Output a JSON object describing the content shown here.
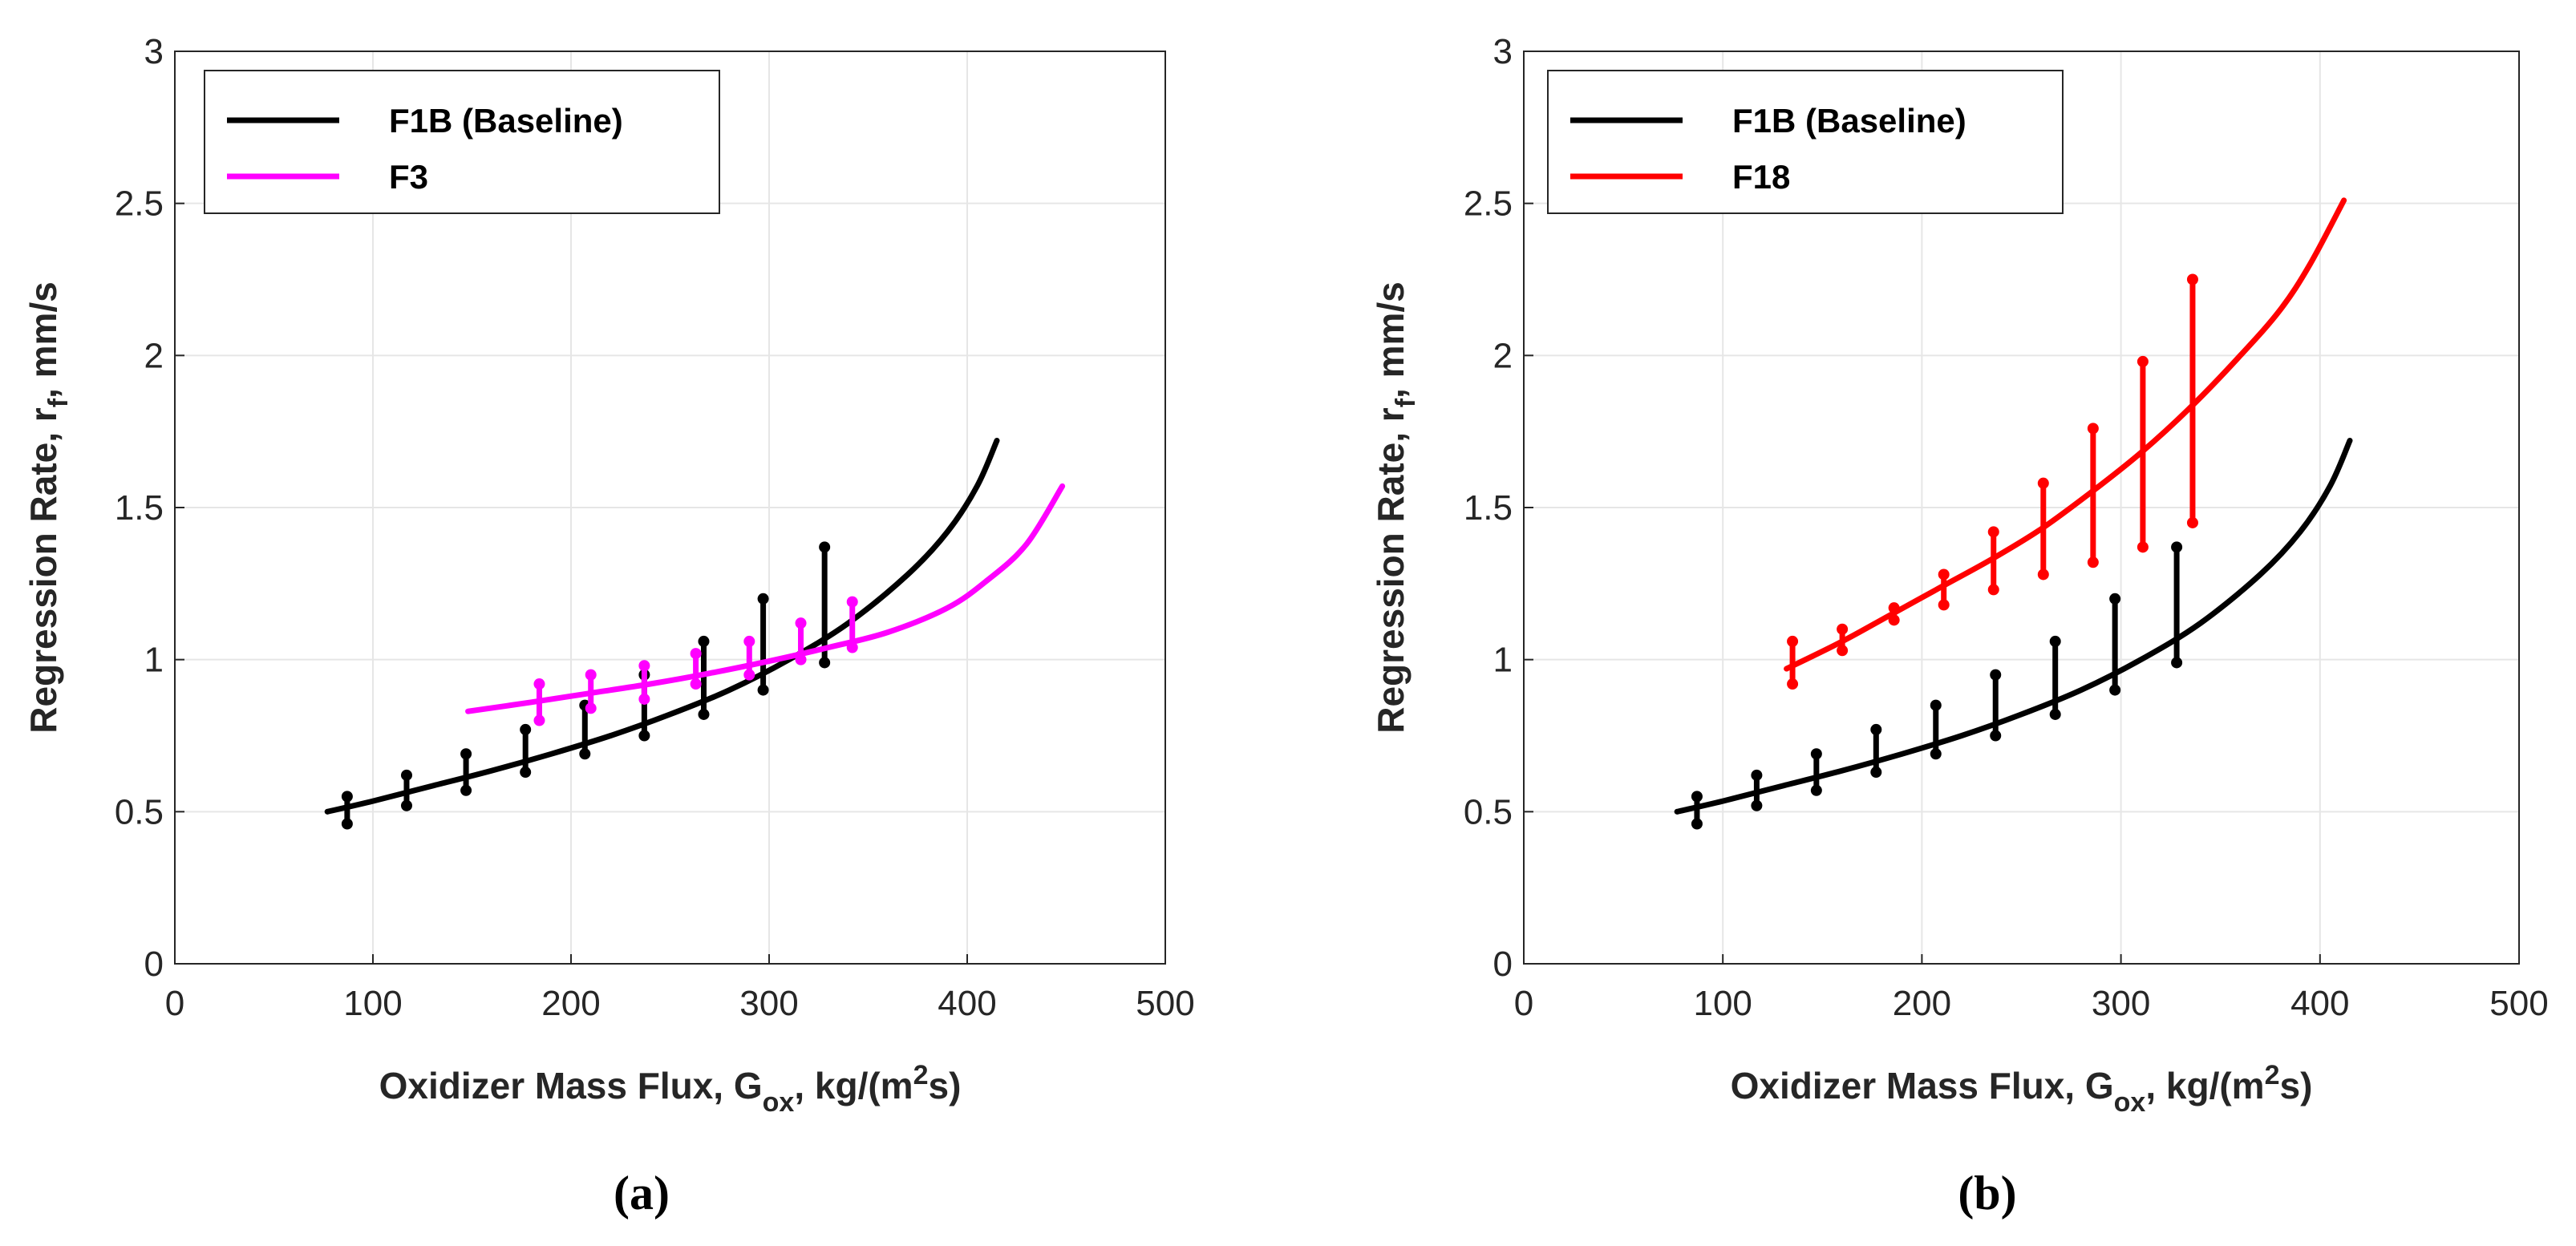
{
  "chart_data": [
    {
      "type": "line",
      "panel_label": "(a)",
      "xlabel": {
        "main": "Oxidizer Mass Flux, G",
        "sub": "ox",
        "mid": ", kg/(m",
        "sup": "2",
        "end": "s)"
      },
      "ylabel": {
        "main": "Regression Rate, r",
        "sub": "f",
        "end": ", mm/s"
      },
      "xlim": [
        0,
        500
      ],
      "ylim": [
        0,
        3
      ],
      "xticks": [
        0,
        100,
        200,
        300,
        400,
        500
      ],
      "yticks": [
        0,
        0.5,
        1,
        1.5,
        2,
        2.5,
        3
      ],
      "xtick_labels": [
        "0",
        "100",
        "200",
        "300",
        "400",
        "500"
      ],
      "ytick_labels": [
        "0",
        "0.5",
        "1",
        "1.5",
        "2",
        "2.5",
        "3"
      ],
      "grid": true,
      "legend_position": "top-left",
      "series": [
        {
          "name": "F1B (Baseline)",
          "color": "#000000",
          "curve": {
            "x_start": 77,
            "x_end": 415,
            "values": [
              [
                77,
                0.5
              ],
              [
                100,
                0.535
              ],
              [
                130,
                0.585
              ],
              [
                160,
                0.635
              ],
              [
                190,
                0.69
              ],
              [
                220,
                0.75
              ],
              [
                250,
                0.82
              ],
              [
                280,
                0.9
              ],
              [
                310,
                1.0
              ],
              [
                340,
                1.12
              ],
              [
                370,
                1.28
              ],
              [
                390,
                1.42
              ],
              [
                405,
                1.57
              ],
              [
                415,
                1.72
              ]
            ]
          },
          "error_bars": [
            {
              "x": 87,
              "low": 0.46,
              "high": 0.55
            },
            {
              "x": 117,
              "low": 0.52,
              "high": 0.62
            },
            {
              "x": 147,
              "low": 0.57,
              "high": 0.69
            },
            {
              "x": 177,
              "low": 0.63,
              "high": 0.77
            },
            {
              "x": 207,
              "low": 0.69,
              "high": 0.85
            },
            {
              "x": 237,
              "low": 0.75,
              "high": 0.95
            },
            {
              "x": 267,
              "low": 0.82,
              "high": 1.06
            },
            {
              "x": 297,
              "low": 0.9,
              "high": 1.2
            },
            {
              "x": 328,
              "low": 0.99,
              "high": 1.37
            }
          ]
        },
        {
          "name": "F3",
          "color": "#ff00ff",
          "curve": {
            "x_start": 148,
            "x_end": 448,
            "values": [
              [
                148,
                0.83
              ],
              [
                180,
                0.86
              ],
              [
                210,
                0.89
              ],
              [
                240,
                0.92
              ],
              [
                270,
                0.955
              ],
              [
                300,
                0.995
              ],
              [
                330,
                1.04
              ],
              [
                360,
                1.09
              ],
              [
                390,
                1.17
              ],
              [
                410,
                1.26
              ],
              [
                430,
                1.38
              ],
              [
                448,
                1.57
              ]
            ]
          },
          "error_bars": [
            {
              "x": 184,
              "low": 0.8,
              "high": 0.92
            },
            {
              "x": 210,
              "low": 0.84,
              "high": 0.95
            },
            {
              "x": 237,
              "low": 0.87,
              "high": 0.98
            },
            {
              "x": 263,
              "low": 0.92,
              "high": 1.02
            },
            {
              "x": 290,
              "low": 0.95,
              "high": 1.06
            },
            {
              "x": 316,
              "low": 1.0,
              "high": 1.12
            },
            {
              "x": 342,
              "low": 1.04,
              "high": 1.19
            }
          ]
        }
      ]
    },
    {
      "type": "line",
      "panel_label": "(b)",
      "xlabel": {
        "main": "Oxidizer Mass Flux, G",
        "sub": "ox",
        "mid": ", kg/(m",
        "sup": "2",
        "end": "s)"
      },
      "ylabel": {
        "main": "Regression Rate, r",
        "sub": "f",
        "end": ", mm/s"
      },
      "xlim": [
        0,
        500
      ],
      "ylim": [
        0,
        3
      ],
      "xticks": [
        0,
        100,
        200,
        300,
        400,
        500
      ],
      "yticks": [
        0,
        0.5,
        1,
        1.5,
        2,
        2.5,
        3
      ],
      "xtick_labels": [
        "0",
        "100",
        "200",
        "300",
        "400",
        "500"
      ],
      "ytick_labels": [
        "0",
        "0.5",
        "1",
        "1.5",
        "2",
        "2.5",
        "3"
      ],
      "grid": true,
      "legend_position": "top-left",
      "series": [
        {
          "name": "F1B (Baseline)",
          "color": "#000000",
          "curve": {
            "x_start": 77,
            "x_end": 415,
            "values": [
              [
                77,
                0.5
              ],
              [
                100,
                0.535
              ],
              [
                130,
                0.585
              ],
              [
                160,
                0.635
              ],
              [
                190,
                0.69
              ],
              [
                220,
                0.75
              ],
              [
                250,
                0.82
              ],
              [
                280,
                0.9
              ],
              [
                310,
                1.0
              ],
              [
                340,
                1.12
              ],
              [
                370,
                1.28
              ],
              [
                390,
                1.42
              ],
              [
                405,
                1.57
              ],
              [
                415,
                1.72
              ]
            ]
          },
          "error_bars": [
            {
              "x": 87,
              "low": 0.46,
              "high": 0.55
            },
            {
              "x": 117,
              "low": 0.52,
              "high": 0.62
            },
            {
              "x": 147,
              "low": 0.57,
              "high": 0.69
            },
            {
              "x": 177,
              "low": 0.63,
              "high": 0.77
            },
            {
              "x": 207,
              "low": 0.69,
              "high": 0.85
            },
            {
              "x": 237,
              "low": 0.75,
              "high": 0.95
            },
            {
              "x": 267,
              "low": 0.82,
              "high": 1.06
            },
            {
              "x": 297,
              "low": 0.9,
              "high": 1.2
            },
            {
              "x": 328,
              "low": 0.99,
              "high": 1.37
            }
          ]
        },
        {
          "name": "F18",
          "color": "#ff0000",
          "curve": {
            "x_start": 132,
            "x_end": 412,
            "values": [
              [
                132,
                0.97
              ],
              [
                160,
                1.06
              ],
              [
                185,
                1.15
              ],
              [
                210,
                1.24
              ],
              [
                235,
                1.33
              ],
              [
                260,
                1.43
              ],
              [
                285,
                1.55
              ],
              [
                310,
                1.68
              ],
              [
                335,
                1.83
              ],
              [
                360,
                2.0
              ],
              [
                380,
                2.15
              ],
              [
                395,
                2.3
              ],
              [
                412,
                2.51
              ]
            ]
          },
          "error_bars": [
            {
              "x": 135,
              "low": 0.92,
              "high": 1.06
            },
            {
              "x": 160,
              "low": 1.03,
              "high": 1.1
            },
            {
              "x": 186,
              "low": 1.13,
              "high": 1.17
            },
            {
              "x": 211,
              "low": 1.18,
              "high": 1.28
            },
            {
              "x": 236,
              "low": 1.23,
              "high": 1.42
            },
            {
              "x": 261,
              "low": 1.28,
              "high": 1.58
            },
            {
              "x": 286,
              "low": 1.32,
              "high": 1.76
            },
            {
              "x": 311,
              "low": 1.37,
              "high": 1.98
            },
            {
              "x": 336,
              "low": 1.45,
              "high": 2.25
            }
          ]
        }
      ]
    }
  ]
}
